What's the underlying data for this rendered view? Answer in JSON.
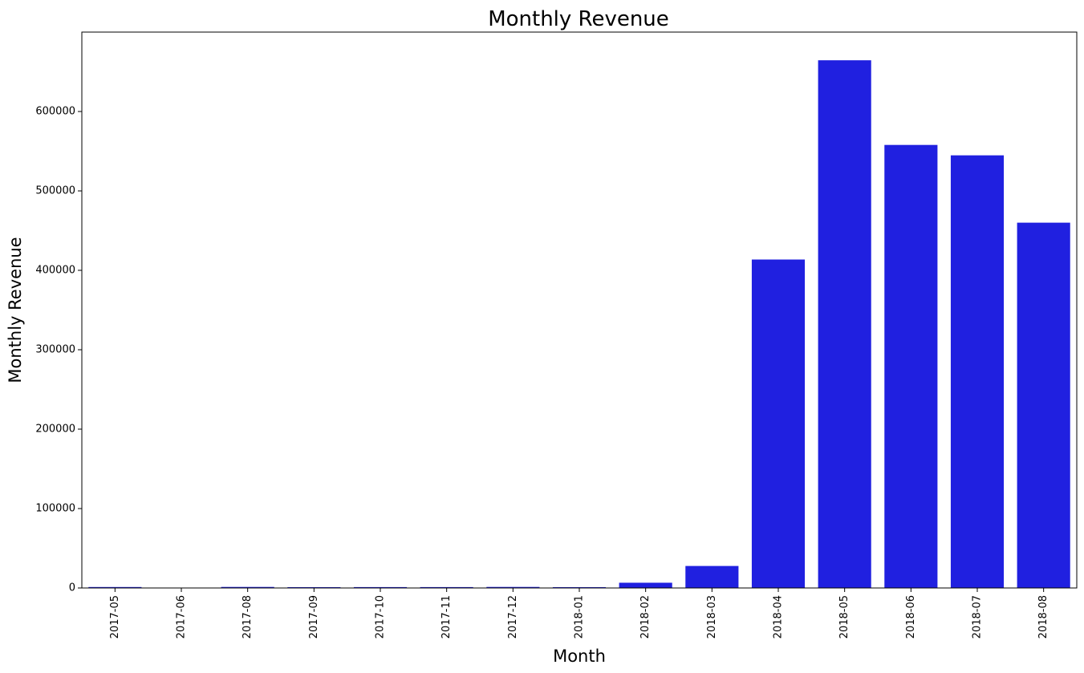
{
  "chart_data": {
    "type": "bar",
    "title": "Monthly Revenue",
    "xlabel": "Month",
    "ylabel": "Monthly Revenue",
    "categories": [
      "2017-05",
      "2017-06",
      "2017-08",
      "2017-09",
      "2017-10",
      "2017-11",
      "2017-12",
      "2018-01",
      "2018-02",
      "2018-03",
      "2018-04",
      "2018-05",
      "2018-06",
      "2018-07",
      "2018-08"
    ],
    "values": [
      1200,
      50,
      1300,
      1000,
      1100,
      1100,
      1300,
      1000,
      6600,
      27700,
      413600,
      664500,
      557900,
      544800,
      460000
    ],
    "ylim": [
      0,
      700000
    ],
    "yticks": [
      0,
      100000,
      200000,
      300000,
      400000,
      500000,
      600000
    ],
    "ytick_labels": [
      "0",
      "100000",
      "200000",
      "300000",
      "400000",
      "500000",
      "600000"
    ],
    "bar_color": "#2020e0",
    "grid": false,
    "legend": "none"
  }
}
